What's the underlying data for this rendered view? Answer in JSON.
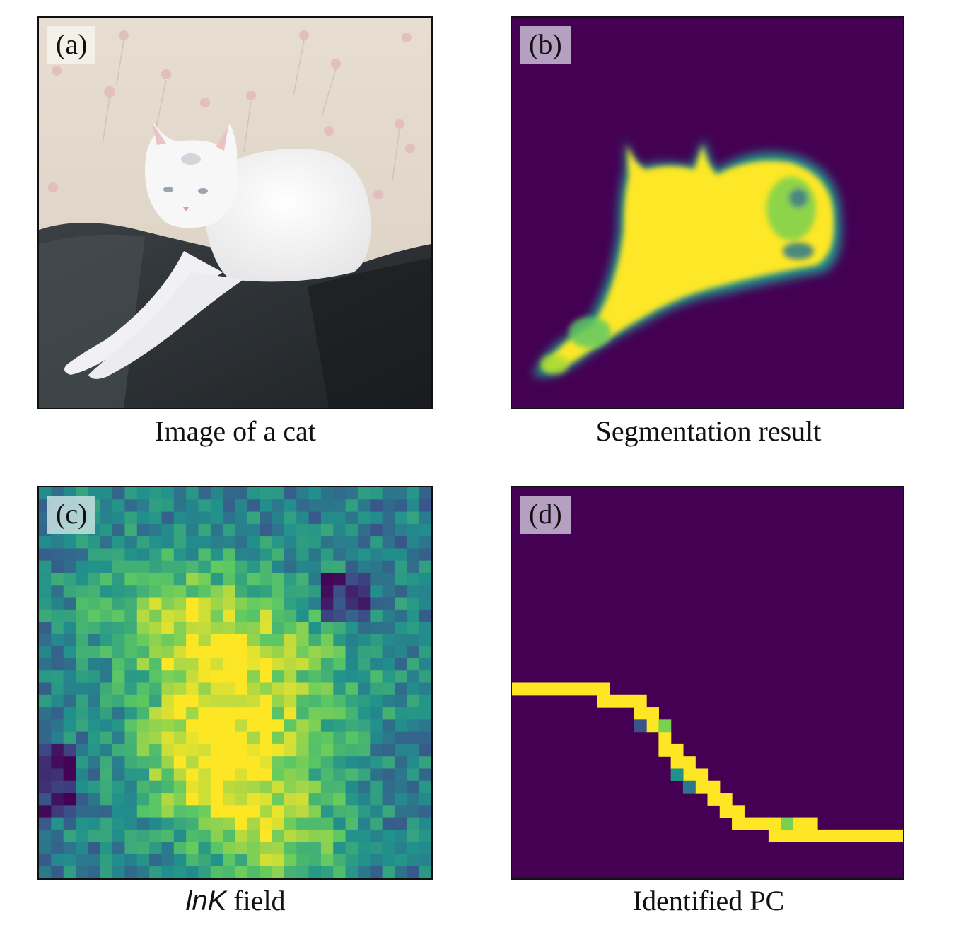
{
  "panels": [
    {
      "label": "(a)",
      "caption": "Image of a cat"
    },
    {
      "label": "(b)",
      "caption": "Segmentation result"
    },
    {
      "label": "(c)",
      "caption_italic": "lnK",
      "caption_rest": " field"
    },
    {
      "label": "(d)",
      "caption": "Identified PC"
    }
  ],
  "colors": {
    "viridis_low": "#440154",
    "viridis_mid": "#21918c",
    "viridis_high": "#fde725"
  },
  "icons": {
    "photo": "cat-photo-icon",
    "mask": "segmentation-mask-icon",
    "field": "lnk-heatmap-icon",
    "curve": "pc-curve-icon"
  }
}
